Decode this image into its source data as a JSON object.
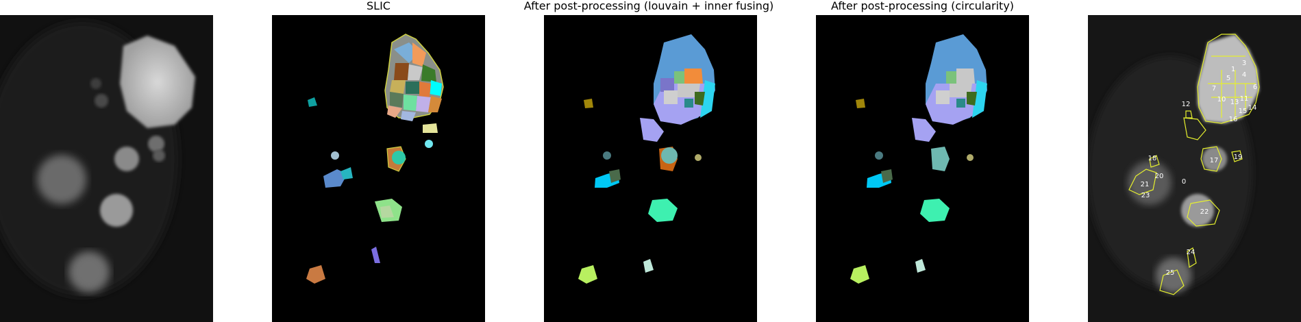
{
  "figure": {
    "panels": [
      {
        "id": "original",
        "title": ""
      },
      {
        "id": "slic",
        "title": "SLIC"
      },
      {
        "id": "louvain",
        "title": "After post-processing (louvain + inner fusing)"
      },
      {
        "id": "circularity",
        "title": "After post-processing (circularity)"
      },
      {
        "id": "overlay",
        "title": ""
      }
    ],
    "overlay_labels": [
      "0",
      "1",
      "3",
      "4",
      "5",
      "6",
      "7",
      "10",
      "11",
      "12",
      "13",
      "14",
      "15",
      "16",
      "17",
      "18",
      "19",
      "20",
      "21",
      "22",
      "23",
      "24",
      "25"
    ],
    "colors": {
      "background": "#000000",
      "contour": "#e6f02e"
    }
  }
}
